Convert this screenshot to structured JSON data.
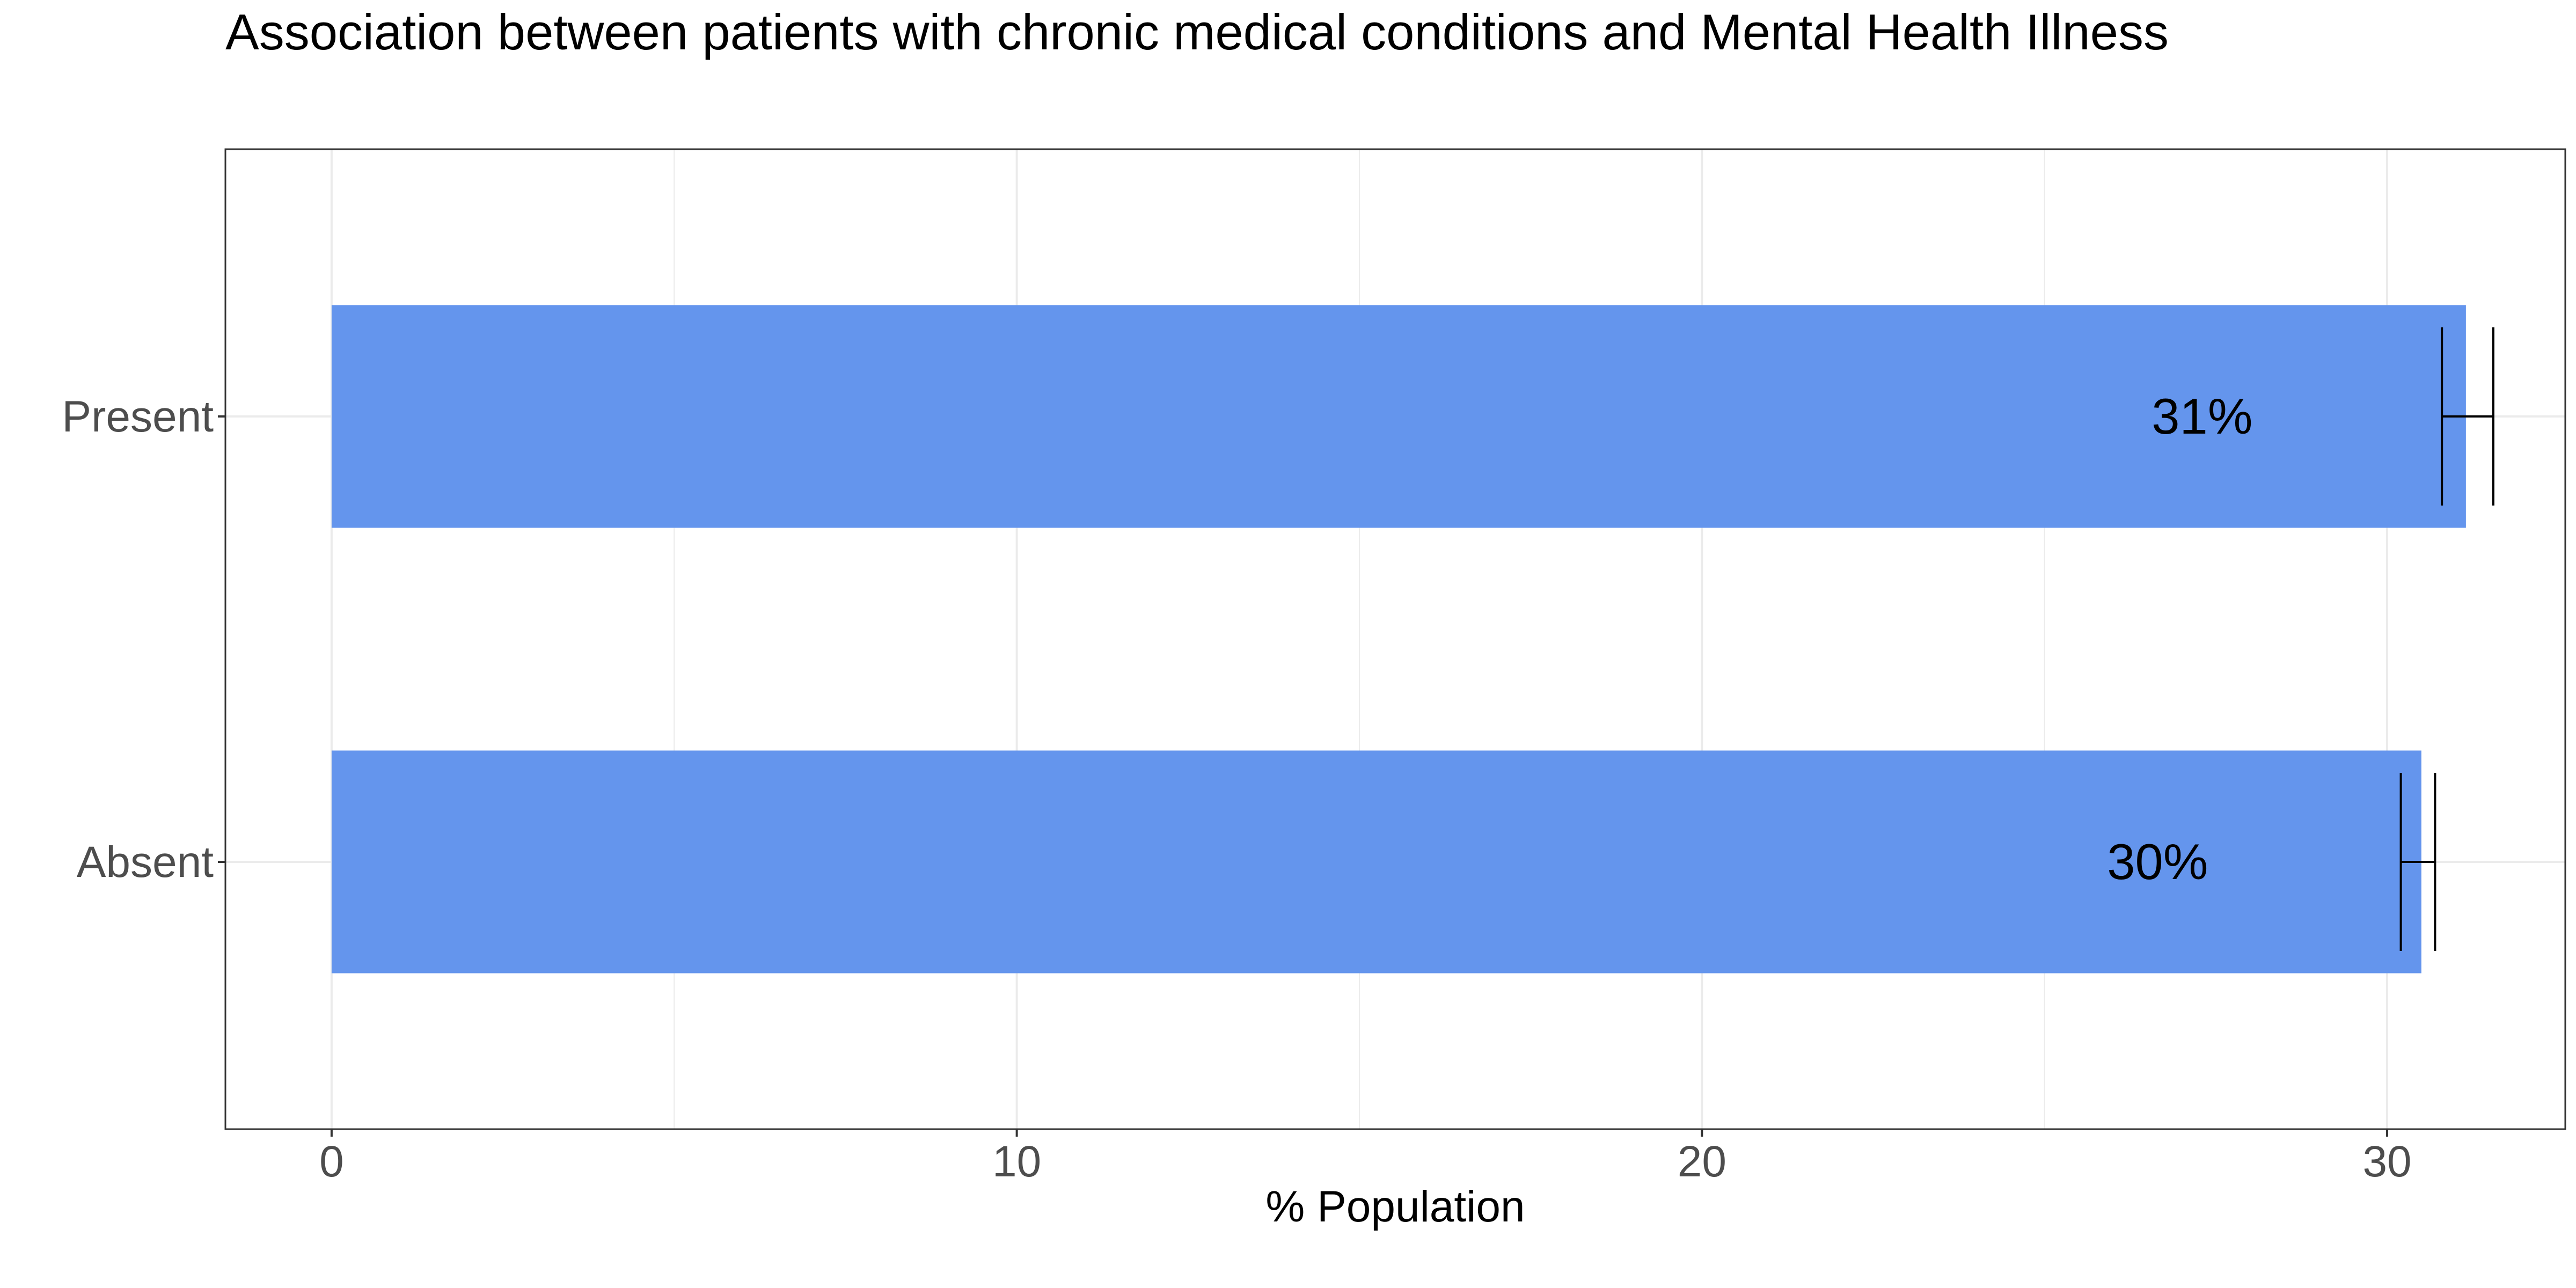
{
  "chart_data": {
    "type": "bar",
    "orientation": "horizontal",
    "title": "Association between patients with chronic medical conditions and Mental Health Illness",
    "xlabel": "% Population",
    "ylabel": "",
    "categories": [
      "Absent",
      "Present"
    ],
    "values": [
      30.5,
      31.15
    ],
    "data_labels": [
      "30%",
      "31%"
    ],
    "error_bars": [
      {
        "low": 30.2,
        "high": 30.7
      },
      {
        "low": 30.8,
        "high": 31.55
      }
    ],
    "xlim": [
      -1.55,
      32.6
    ],
    "x_ticks": [
      0,
      10,
      20,
      30
    ],
    "x_tick_labels": [
      "0",
      "10",
      "20",
      "30"
    ],
    "grid": true,
    "legend": "none",
    "colors": {
      "bar": "#6495ed",
      "error_bar": "#000000",
      "grid": "#ebebeb",
      "panel_border": "#333333",
      "tick_label": "#4d4d4d"
    }
  }
}
